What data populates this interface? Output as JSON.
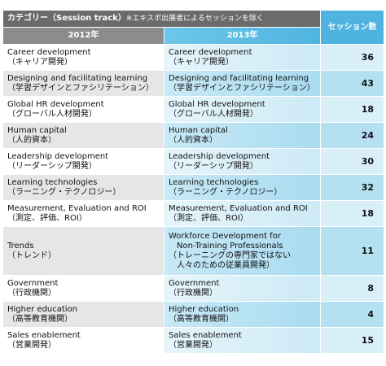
{
  "header": {
    "title": "カテゴリー（Session track）",
    "note": "※エキスポ出展者によるセッションを除く",
    "col2012": "2012年",
    "col2013": "2013年",
    "sessions": "セッション数"
  },
  "rows": [
    {
      "y2012": [
        "Career development",
        "（キャリア開発）"
      ],
      "y2013": [
        "Career development",
        "（キャリア開発）"
      ],
      "sessions": "36"
    },
    {
      "y2012": [
        "Designing and facilitating learning",
        "（学習デザインとファシリテーション）"
      ],
      "y2013": [
        "Designing and facilitating learning",
        "（学習デザインとファシリテーション）"
      ],
      "sessions": "43"
    },
    {
      "y2012": [
        "Global HR development",
        "（グローバル人材開発）"
      ],
      "y2013": [
        "Global HR development",
        "（グローバル人材開発）"
      ],
      "sessions": "18"
    },
    {
      "y2012": [
        "Human capital",
        "（人的資本）"
      ],
      "y2013": [
        "Human capital",
        "（人的資本）"
      ],
      "sessions": "24"
    },
    {
      "y2012": [
        "Leadership development",
        "（リーダーシップ開発）"
      ],
      "y2013": [
        "Leadership development",
        "（リーダーシップ開発）"
      ],
      "sessions": "30"
    },
    {
      "y2012": [
        "Learning technologies",
        "（ラーニング・テクノロジー）"
      ],
      "y2013": [
        "Learning technologies",
        "（ラーニング・テクノロジー）"
      ],
      "sessions": "32"
    },
    {
      "y2012": [
        "Measurement, Evaluation and ROI",
        "（測定、評価、ROI）"
      ],
      "y2013": [
        "Measurement, Evaluation and ROI",
        "（測定、評価、ROI）"
      ],
      "sessions": "18"
    },
    {
      "y2012": [
        "Trends",
        "（トレンド）"
      ],
      "y2013": [
        "Workforce Development for",
        "　Non-Training Professionals",
        "（トレーニングの専門家ではない",
        "　人々のための従業員開発）"
      ],
      "sessions": "11"
    },
    {
      "y2012": [
        "Government",
        "（行政機関）"
      ],
      "y2013": [
        "Government",
        "（行政機関）"
      ],
      "sessions": "8"
    },
    {
      "y2012": [
        "Higher education",
        "（高等教育機関）"
      ],
      "y2013": [
        "Higher education",
        "（高等教育機関）"
      ],
      "sessions": "4"
    },
    {
      "y2012": [
        "Sales enablement",
        "（営業開発）"
      ],
      "y2013": [
        "Sales enablement",
        "（営業開発）"
      ],
      "sessions": "15"
    }
  ]
}
